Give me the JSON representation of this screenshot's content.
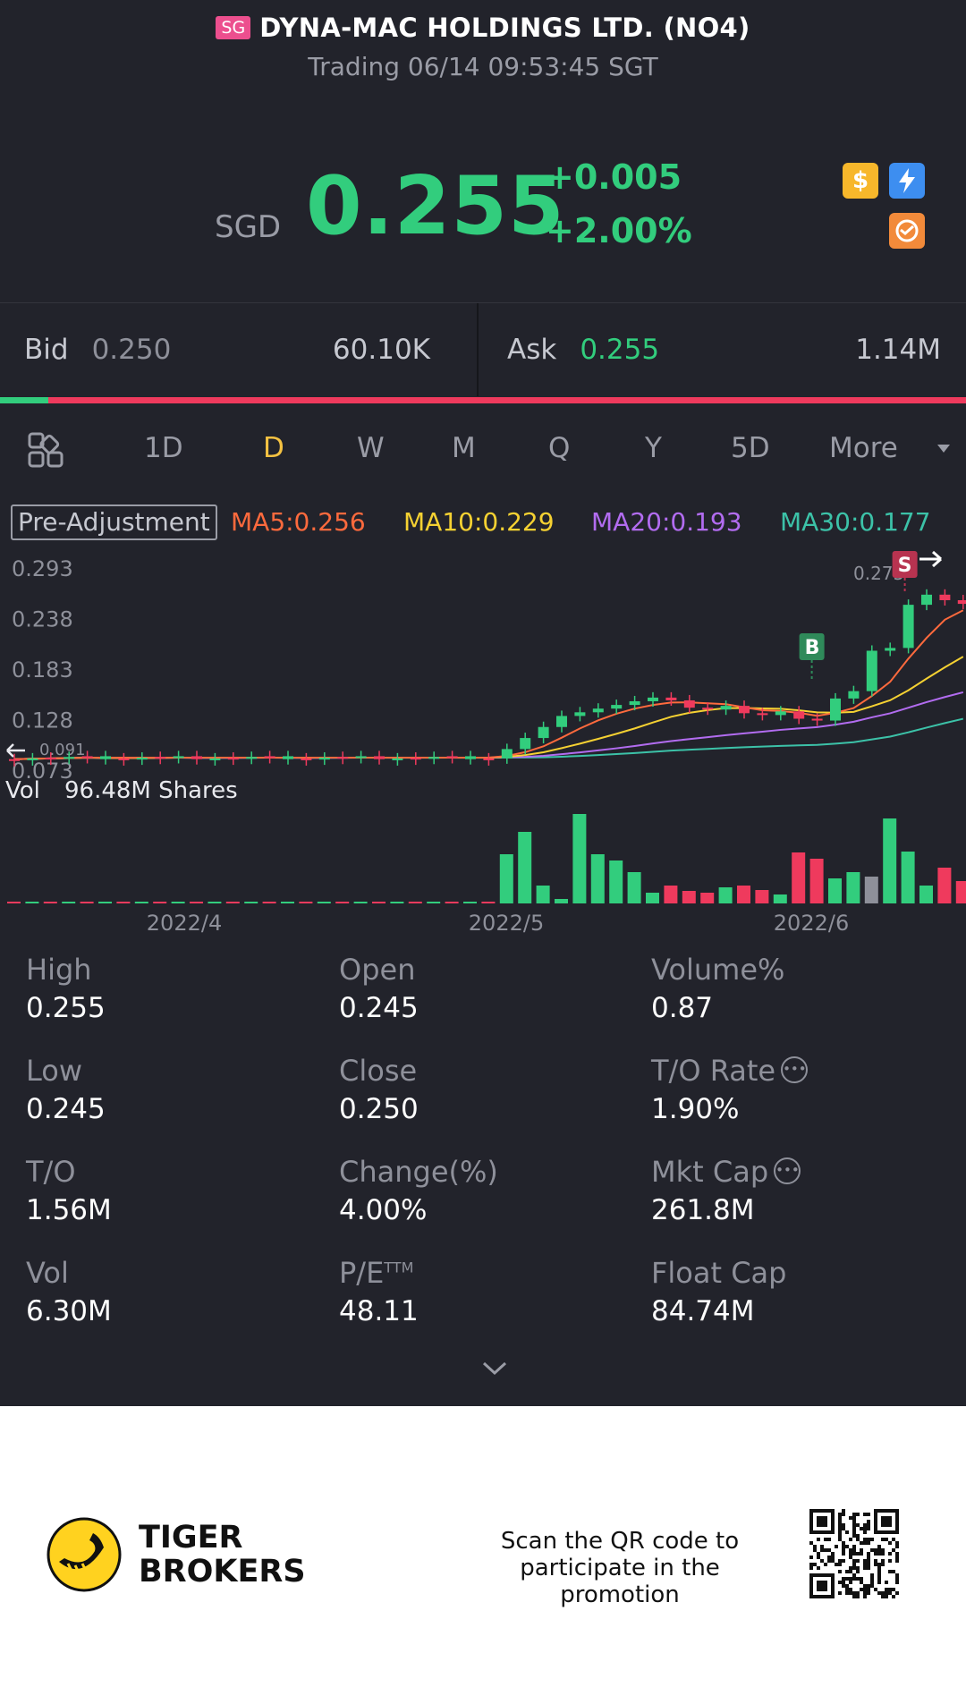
{
  "header": {
    "market_badge": "SG",
    "title": "DYNA-MAC HOLDINGS LTD. (NO4)",
    "status": "Trading 06/14 09:53:45 SGT"
  },
  "quote": {
    "currency": "SGD",
    "price": "0.255",
    "change": "+0.005",
    "change_pct": "+2.00%",
    "icons": [
      "dollar-icon",
      "lightning-icon",
      "swap-icon"
    ],
    "up_color": "#32cd7d",
    "down_color": "#ef3a5d"
  },
  "bid_ask": {
    "bid_label": "Bid",
    "bid_price": "0.250",
    "bid_volume": "60.10K",
    "ask_label": "Ask",
    "ask_price": "0.255",
    "ask_volume": "1.14M",
    "bid_ratio": 0.05
  },
  "tabs": {
    "items": [
      "1D",
      "D",
      "W",
      "M",
      "Q",
      "Y",
      "5D",
      "More"
    ],
    "active": "D"
  },
  "indicators": {
    "adjustment": "Pre-Adjustment",
    "ma5": "MA5:0.256",
    "ma10": "MA10:0.229",
    "ma20": "MA20:0.193",
    "ma30": "MA30:0.177"
  },
  "chart_data": {
    "type": "candlestick",
    "y_ticks": [
      "0.293",
      "0.238",
      "0.183",
      "0.128",
      "0.073"
    ],
    "low_marker": "0.091",
    "high_marker": "0.275",
    "buy_marker": "B",
    "sell_marker": "S",
    "volume_label": "Vol",
    "volume_value": "96.48M Shares",
    "x_ticks": [
      "2022/4",
      "2022/5",
      "2022/6"
    ],
    "ma_colors": {
      "ma5": "#ff6a3d",
      "ma10": "#f5d132",
      "ma20": "#b26cf0",
      "ma30": "#3cc2a8"
    }
  },
  "stats": [
    {
      "label": "High",
      "value": "0.255"
    },
    {
      "label": "Open",
      "value": "0.245"
    },
    {
      "label": "Volume%",
      "value": "0.87"
    },
    {
      "label": "Low",
      "value": "0.245"
    },
    {
      "label": "Close",
      "value": "0.250"
    },
    {
      "label": "T/O Rate",
      "value": "1.90%"
    },
    {
      "label": "T/O",
      "value": "1.56M"
    },
    {
      "label": "Change(%)",
      "value": "4.00%"
    },
    {
      "label": "Mkt Cap",
      "value": "261.8M"
    },
    {
      "label": "Vol",
      "value": "6.30M"
    },
    {
      "label": "P/E",
      "value": "48.11"
    },
    {
      "label": "Float Cap",
      "value": "84.74M"
    }
  ],
  "pe_superscript": "TTM",
  "footer": {
    "brand_line1": "TIGER",
    "brand_line2": "BROKERS",
    "promo_line1": "Scan the QR code to",
    "promo_line2": "participate in the promotion"
  }
}
